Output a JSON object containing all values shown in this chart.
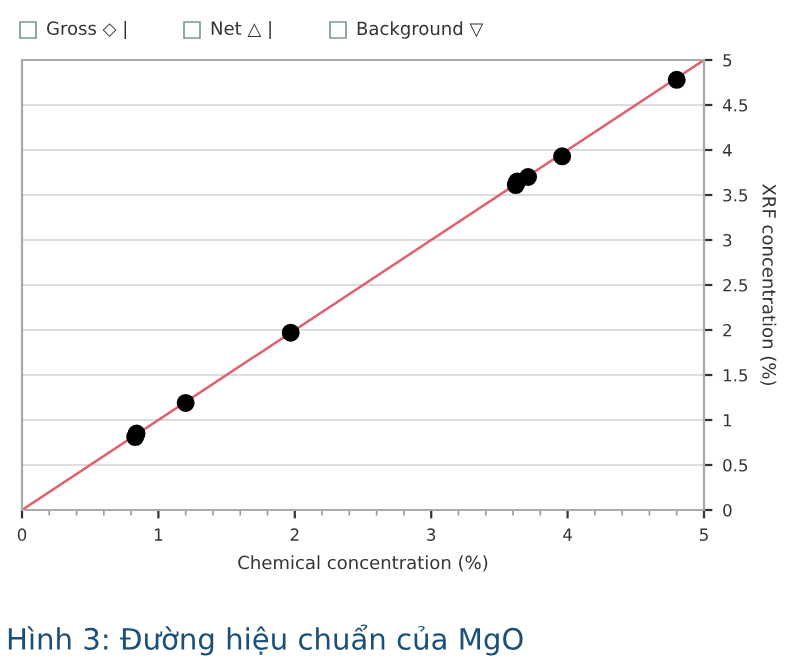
{
  "chart_data": {
    "type": "scatter",
    "title": "Hình 3: Đường hiệu chuẩn của MgO",
    "xlabel": "Chemical concentration (%)",
    "ylabel": "XRF concentration (%)",
    "annotations": [
      "Gross ◇ |",
      "Net △ |",
      "Background ▽"
    ],
    "series": [
      {
        "marker": "circle",
        "color": "#000000",
        "x": [
          0.83,
          0.84,
          1.2,
          1.97,
          3.62,
          3.63,
          3.71,
          3.96,
          4.8
        ],
        "values": [
          0.81,
          0.85,
          1.19,
          1.97,
          3.61,
          3.65,
          3.7,
          3.93,
          4.78
        ]
      },
      {
        "type": "line",
        "marker": "none",
        "color": "#e06070",
        "x": [
          0,
          5
        ],
        "values": [
          0,
          5
        ]
      }
    ],
    "xlim": [
      0,
      5
    ],
    "xticks": [
      0,
      1,
      2,
      3,
      4,
      5
    ],
    "ylim": [
      0,
      5
    ],
    "yticks": [
      0,
      0.5,
      1,
      1.5,
      2,
      2.5,
      3,
      3.5,
      4,
      4.5,
      5
    ],
    "grid": "y"
  }
}
